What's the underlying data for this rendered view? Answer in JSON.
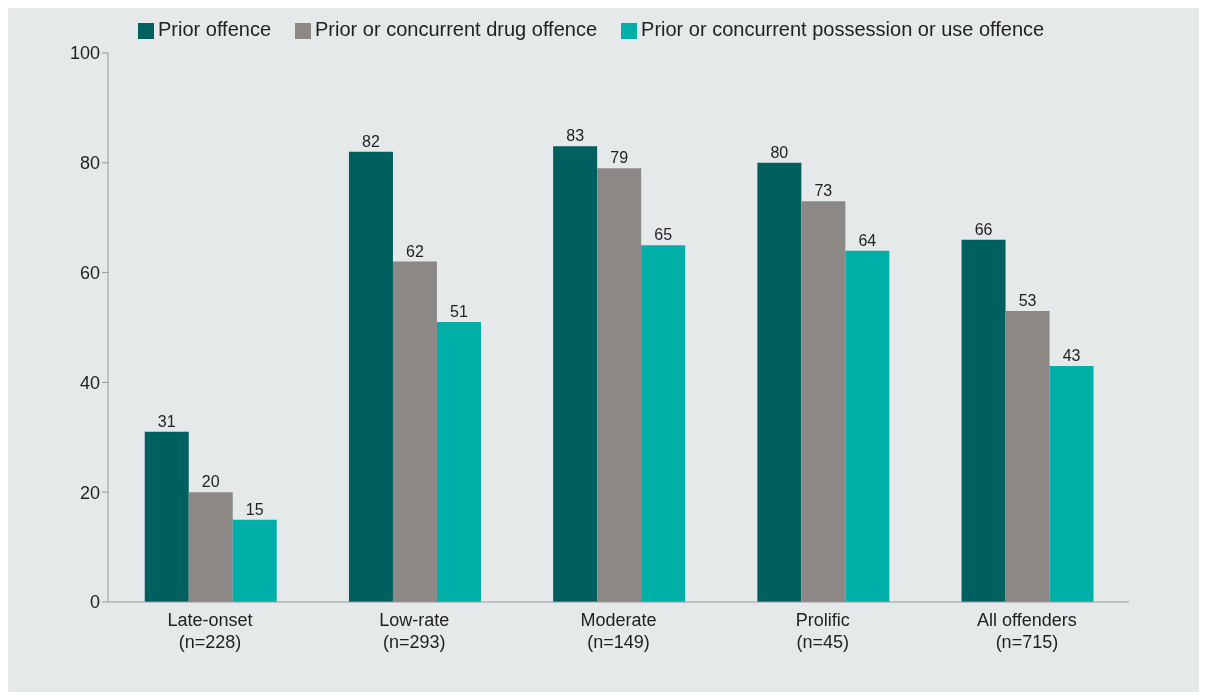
{
  "chart_data": {
    "type": "bar",
    "categories": [
      "Late-onset\n(n=228)",
      "Low-rate\n(n=293)",
      "Moderate\n(n=149)",
      "Prolific\n(n=45)",
      "All offenders\n(n=715)"
    ],
    "series": [
      {
        "name": "Prior offence",
        "color": "#005f5f",
        "values": [
          31,
          82,
          83,
          80,
          66
        ]
      },
      {
        "name": "Prior or concurrent drug offence",
        "color": "#8c8886",
        "values": [
          20,
          62,
          79,
          73,
          53
        ]
      },
      {
        "name": "Prior or concurrent possession or use offence",
        "color": "#00b0a8",
        "values": [
          15,
          51,
          65,
          64,
          43
        ]
      }
    ],
    "ylim": [
      0,
      100
    ],
    "yticks": [
      0,
      20,
      40,
      60,
      80,
      100
    ],
    "grid": false,
    "legend": "top",
    "data_labels": true
  }
}
